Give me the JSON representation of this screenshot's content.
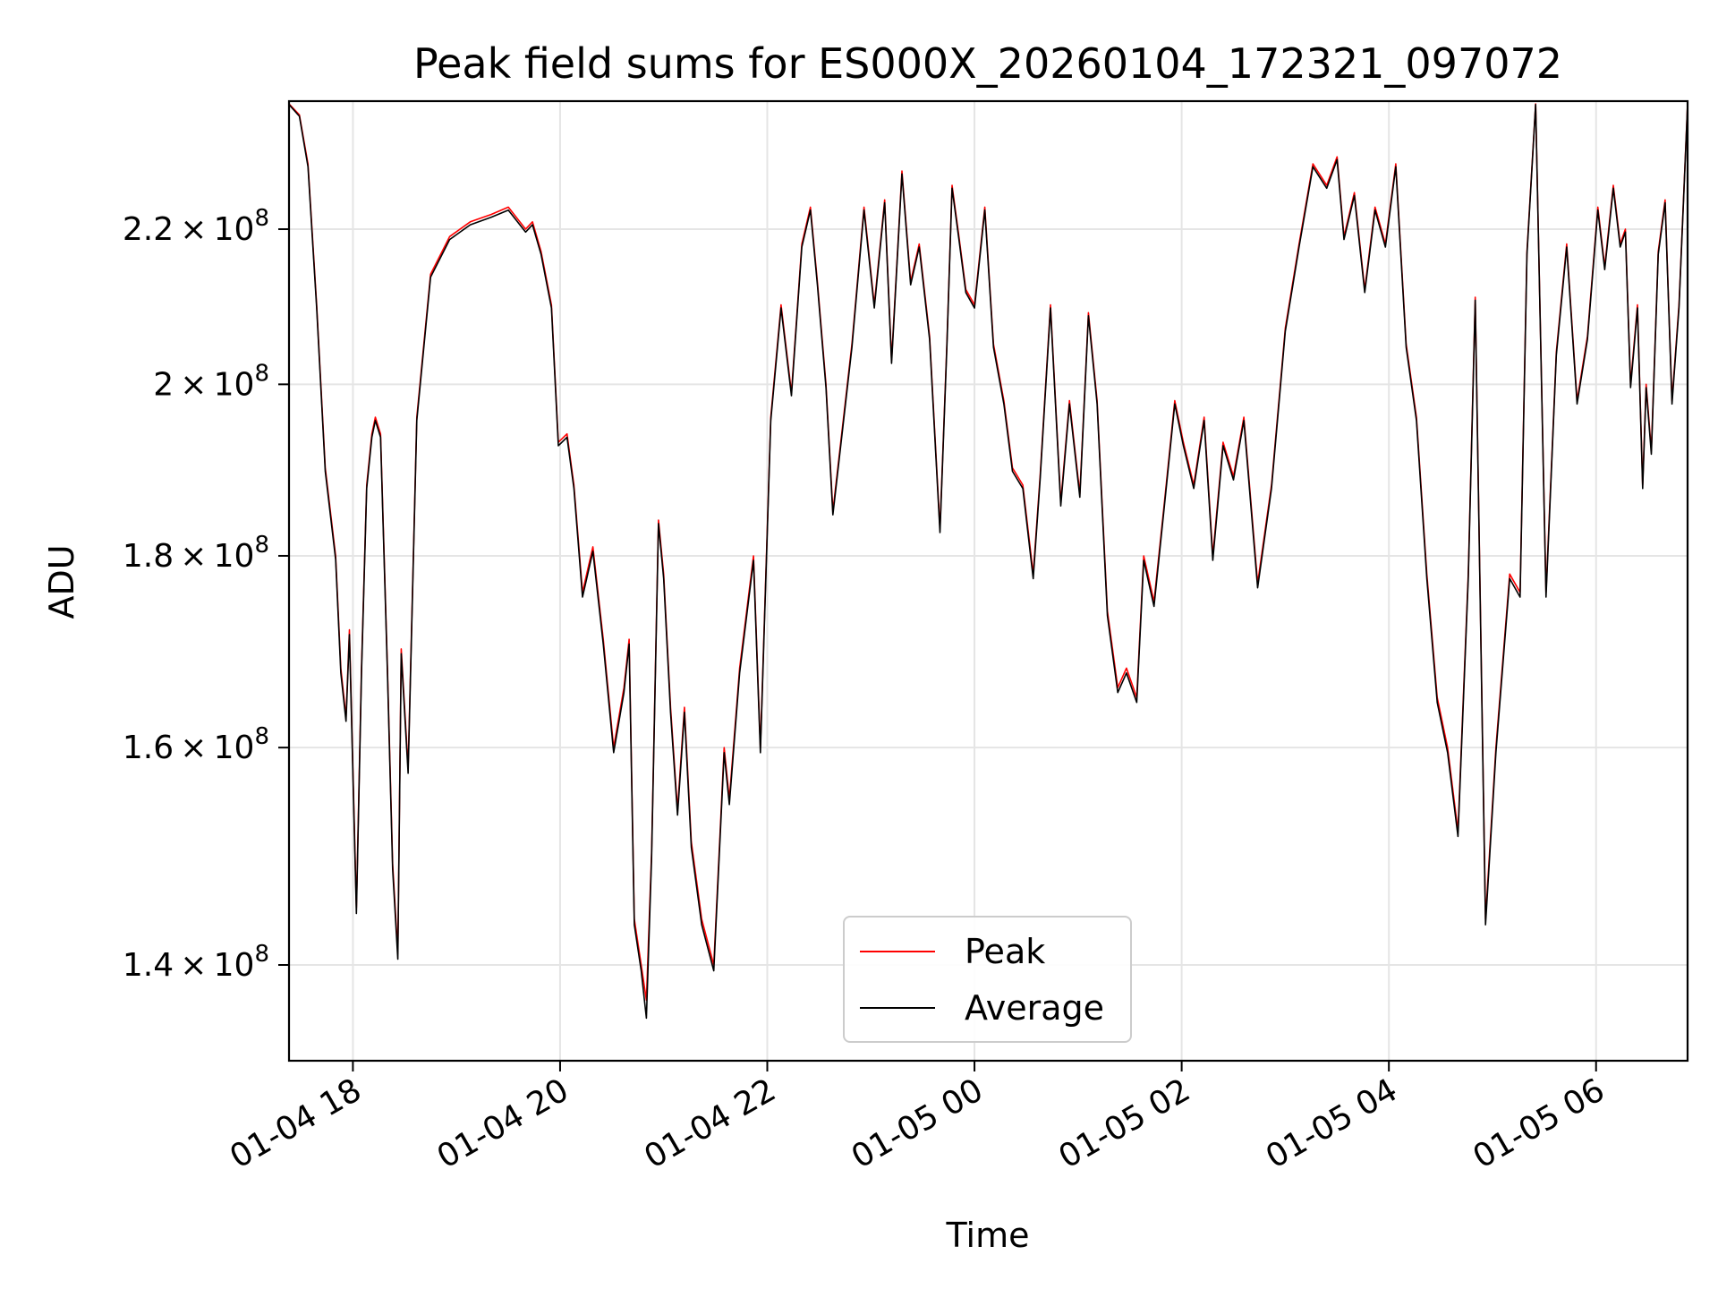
{
  "chart_data": {
    "type": "line",
    "title": "Peak field sums for ES000X_20260104_172321_097072",
    "xlabel": "Time",
    "ylabel": "ADU",
    "x_unit": "hours since 2026-01-04 00:00",
    "xlim": [
      "01-04 17:23",
      "01-05 06:53"
    ],
    "ylim": [
      132000000,
      238000000
    ],
    "yscale": "log",
    "grid": true,
    "legend_position": "lower center",
    "x_ticks": [
      {
        "value": 18,
        "label": "01-04 18"
      },
      {
        "value": 20,
        "label": "01-04 20"
      },
      {
        "value": 22,
        "label": "01-04 22"
      },
      {
        "value": 24,
        "label": "01-05 00"
      },
      {
        "value": 26,
        "label": "01-05 02"
      },
      {
        "value": 28,
        "label": "01-05 04"
      },
      {
        "value": 30,
        "label": "01-05 06"
      }
    ],
    "y_ticks": [
      {
        "value": 140000000,
        "mantissa": "1.4",
        "exponent": "8"
      },
      {
        "value": 160000000,
        "mantissa": "1.6",
        "exponent": "8"
      },
      {
        "value": 180000000,
        "mantissa": "1.8",
        "exponent": "8"
      },
      {
        "value": 200000000,
        "mantissa": "2",
        "exponent": "8"
      },
      {
        "value": 220000000,
        "mantissa": "2.2",
        "exponent": "8"
      }
    ],
    "series": [
      {
        "name": "Peak",
        "color": "#ff0000",
        "x": [
          "01-04 17:23",
          "01-04 17:29",
          "01-04 17:34",
          "01-04 17:39",
          "01-04 17:44",
          "01-04 17:50",
          "01-04 17:53",
          "01-04 17:56",
          "01-04 17:58",
          "01-04 18:02",
          "01-04 18:05",
          "01-04 18:08",
          "01-04 18:11",
          "01-04 18:13",
          "01-04 18:16",
          "01-04 18:20",
          "01-04 18:23",
          "01-04 18:26",
          "01-04 18:28",
          "01-04 18:32",
          "01-04 18:37",
          "01-04 18:45",
          "01-04 18:56",
          "01-04 19:08",
          "01-04 19:20",
          "01-04 19:30",
          "01-04 19:40",
          "01-04 19:44",
          "01-04 19:49",
          "01-04 19:55",
          "01-04 19:59",
          "01-04 20:04",
          "01-04 20:08",
          "01-04 20:13",
          "01-04 20:19",
          "01-04 20:25",
          "01-04 20:31",
          "01-04 20:37",
          "01-04 20:40",
          "01-04 20:43",
          "01-04 20:47",
          "01-04 20:50",
          "01-04 20:53",
          "01-04 20:57",
          "01-04 21:00",
          "01-04 21:04",
          "01-04 21:08",
          "01-04 21:12",
          "01-04 21:16",
          "01-04 21:22",
          "01-04 21:29",
          "01-04 21:35",
          "01-04 21:38",
          "01-04 21:44",
          "01-04 21:52",
          "01-04 21:56",
          "01-04 22:02",
          "01-04 22:08",
          "01-04 22:14",
          "01-04 22:20",
          "01-04 22:25",
          "01-04 22:29",
          "01-04 22:34",
          "01-04 22:38",
          "01-04 22:49",
          "01-04 22:56",
          "01-04 23:02",
          "01-04 23:08",
          "01-04 23:12",
          "01-04 23:18",
          "01-04 23:23",
          "01-04 23:28",
          "01-04 23:34",
          "01-04 23:40",
          "01-04 23:44",
          "01-04 23:47",
          "01-04 23:51",
          "01-04 23:55",
          "01-05 00:00",
          "01-05 00:06",
          "01-05 00:11",
          "01-05 00:17",
          "01-05 00:22",
          "01-05 00:28",
          "01-05 00:34",
          "01-05 00:38",
          "01-05 00:44",
          "01-05 00:50",
          "01-05 00:55",
          "01-05 01:01",
          "01-05 01:06",
          "01-05 01:11",
          "01-05 01:17",
          "01-05 01:23",
          "01-05 01:28",
          "01-05 01:34",
          "01-05 01:38",
          "01-05 01:44",
          "01-05 01:50",
          "01-05 01:56",
          "01-05 02:01",
          "01-05 02:07",
          "01-05 02:13",
          "01-05 02:18",
          "01-05 02:24",
          "01-05 02:30",
          "01-05 02:36",
          "01-05 02:44",
          "01-05 02:52",
          "01-05 03:00",
          "01-05 03:08",
          "01-05 03:16",
          "01-05 03:24",
          "01-05 03:30",
          "01-05 03:34",
          "01-05 03:40",
          "01-05 03:46",
          "01-05 03:52",
          "01-05 03:58",
          "01-05 04:04",
          "01-05 04:10",
          "01-05 04:16",
          "01-05 04:22",
          "01-05 04:28",
          "01-05 04:34",
          "01-05 04:40",
          "01-05 04:46",
          "01-05 04:50",
          "01-05 04:56",
          "01-05 05:02",
          "01-05 05:10",
          "01-05 05:16",
          "01-05 05:20",
          "01-05 05:25",
          "01-05 05:31",
          "01-05 05:37",
          "01-05 05:43",
          "01-05 05:49",
          "01-05 05:55",
          "01-05 06:01",
          "01-05 06:05",
          "01-05 06:10",
          "01-05 06:14",
          "01-05 06:17",
          "01-05 06:20",
          "01-05 06:24",
          "01-05 06:27",
          "01-05 06:29",
          "01-05 06:32",
          "01-05 06:36",
          "01-05 06:40",
          "01-05 06:44",
          "01-05 06:48",
          "01-05 06:53"
        ],
        "values": [
          237600000,
          236000000,
          229000000,
          210000000,
          190000000,
          180000000,
          168000000,
          163000000,
          172000000,
          145000000,
          168000000,
          188000000,
          194000000,
          196000000,
          194000000,
          168000000,
          149000000,
          141000000,
          170000000,
          158000000,
          196000000,
          214000000,
          219000000,
          221000000,
          222000000,
          223000000,
          220000000,
          221000000,
          217000000,
          210000000,
          193000000,
          194000000,
          188000000,
          176000000,
          181000000,
          171000000,
          160000000,
          166000000,
          171000000,
          144000000,
          140000000,
          137000000,
          150000000,
          184000000,
          178000000,
          164000000,
          154000000,
          164000000,
          151000000,
          144000000,
          140000000,
          160000000,
          155000000,
          168000000,
          180000000,
          160000000,
          196000000,
          210000000,
          199000000,
          218000000,
          223000000,
          213000000,
          200000000,
          185000000,
          205000000,
          223000000,
          210000000,
          224000000,
          203000000,
          228000000,
          213000000,
          218000000,
          206000000,
          183000000,
          205000000,
          226000000,
          219000000,
          212000000,
          210000000,
          223000000,
          205000000,
          198000000,
          190000000,
          188000000,
          178000000,
          189000000,
          210000000,
          186000000,
          198000000,
          187000000,
          209000000,
          198000000,
          174000000,
          166000000,
          168000000,
          165000000,
          180000000,
          175000000,
          186000000,
          198000000,
          193000000,
          188000000,
          196000000,
          180000000,
          193000000,
          189000000,
          196000000,
          177000000,
          188000000,
          207000000,
          218000000,
          229000000,
          226000000,
          230000000,
          219000000,
          225000000,
          212000000,
          223000000,
          218000000,
          229000000,
          205000000,
          196000000,
          178000000,
          165000000,
          160000000,
          152000000,
          178000000,
          211000000,
          144000000,
          160000000,
          178000000,
          176000000,
          217000000,
          237600000,
          176000000,
          204000000,
          218000000,
          198000000,
          206000000,
          223000000,
          215000000,
          226000000,
          218000000,
          220000000,
          200000000,
          210000000,
          188000000,
          200000000,
          192000000,
          217000000,
          224000000,
          198000000,
          210000000,
          237600000
        ],
        "visible": true
      },
      {
        "name": "Average",
        "color": "#000000",
        "x": [
          "01-04 17:23",
          "01-04 17:29",
          "01-04 17:34",
          "01-04 17:39",
          "01-04 17:44",
          "01-04 17:50",
          "01-04 17:53",
          "01-04 17:56",
          "01-04 17:58",
          "01-04 18:02",
          "01-04 18:05",
          "01-04 18:08",
          "01-04 18:11",
          "01-04 18:13",
          "01-04 18:16",
          "01-04 18:20",
          "01-04 18:23",
          "01-04 18:26",
          "01-04 18:28",
          "01-04 18:32",
          "01-04 18:37",
          "01-04 18:45",
          "01-04 18:56",
          "01-04 19:08",
          "01-04 19:20",
          "01-04 19:30",
          "01-04 19:40",
          "01-04 19:44",
          "01-04 19:49",
          "01-04 19:55",
          "01-04 19:59",
          "01-04 20:04",
          "01-04 20:08",
          "01-04 20:13",
          "01-04 20:19",
          "01-04 20:25",
          "01-04 20:31",
          "01-04 20:37",
          "01-04 20:40",
          "01-04 20:43",
          "01-04 20:47",
          "01-04 20:50",
          "01-04 20:53",
          "01-04 20:57",
          "01-04 21:00",
          "01-04 21:04",
          "01-04 21:08",
          "01-04 21:12",
          "01-04 21:16",
          "01-04 21:22",
          "01-04 21:29",
          "01-04 21:35",
          "01-04 21:38",
          "01-04 21:44",
          "01-04 21:52",
          "01-04 21:56",
          "01-04 22:02",
          "01-04 22:08",
          "01-04 22:14",
          "01-04 22:20",
          "01-04 22:25",
          "01-04 22:29",
          "01-04 22:34",
          "01-04 22:38",
          "01-04 22:49",
          "01-04 22:56",
          "01-04 23:02",
          "01-04 23:08",
          "01-04 23:12",
          "01-04 23:18",
          "01-04 23:23",
          "01-04 23:28",
          "01-04 23:34",
          "01-04 23:40",
          "01-04 23:44",
          "01-04 23:47",
          "01-04 23:51",
          "01-04 23:55",
          "01-05 00:00",
          "01-05 00:06",
          "01-05 00:11",
          "01-05 00:17",
          "01-05 00:22",
          "01-05 00:28",
          "01-05 00:34",
          "01-05 00:38",
          "01-05 00:44",
          "01-05 00:50",
          "01-05 00:55",
          "01-05 01:01",
          "01-05 01:06",
          "01-05 01:11",
          "01-05 01:17",
          "01-05 01:23",
          "01-05 01:28",
          "01-05 01:34",
          "01-05 01:38",
          "01-05 01:44",
          "01-05 01:50",
          "01-05 01:56",
          "01-05 02:01",
          "01-05 02:07",
          "01-05 02:13",
          "01-05 02:18",
          "01-05 02:24",
          "01-05 02:30",
          "01-05 02:36",
          "01-05 02:44",
          "01-05 02:52",
          "01-05 03:00",
          "01-05 03:08",
          "01-05 03:16",
          "01-05 03:24",
          "01-05 03:30",
          "01-05 03:34",
          "01-05 03:40",
          "01-05 03:46",
          "01-05 03:52",
          "01-05 03:58",
          "01-05 04:04",
          "01-05 04:10",
          "01-05 04:16",
          "01-05 04:22",
          "01-05 04:28",
          "01-05 04:34",
          "01-05 04:40",
          "01-05 04:46",
          "01-05 04:50",
          "01-05 04:56",
          "01-05 05:02",
          "01-05 05:10",
          "01-05 05:16",
          "01-05 05:20",
          "01-05 05:25",
          "01-05 05:31",
          "01-05 05:37",
          "01-05 05:43",
          "01-05 05:49",
          "01-05 05:55",
          "01-05 06:01",
          "01-05 06:05",
          "01-05 06:10",
          "01-05 06:14",
          "01-05 06:17",
          "01-05 06:20",
          "01-05 06:24",
          "01-05 06:27",
          "01-05 06:29",
          "01-05 06:32",
          "01-05 06:36",
          "01-05 06:40",
          "01-05 06:44",
          "01-05 06:48",
          "01-05 06:53"
        ],
        "values": [
          237500000,
          235800000,
          228600000,
          209600000,
          189600000,
          179600000,
          167500000,
          162600000,
          171500000,
          144500000,
          167500000,
          187600000,
          193600000,
          195600000,
          193600000,
          167500000,
          148500000,
          140500000,
          169500000,
          157500000,
          195600000,
          213600000,
          218600000,
          220600000,
          221600000,
          222600000,
          219600000,
          220600000,
          216600000,
          209600000,
          192600000,
          193600000,
          187600000,
          175500000,
          180500000,
          170500000,
          159500000,
          165500000,
          170500000,
          143500000,
          139500000,
          135500000,
          149500000,
          183600000,
          177500000,
          163500000,
          153500000,
          163500000,
          150500000,
          143500000,
          139500000,
          159500000,
          154500000,
          167500000,
          179500000,
          159500000,
          195600000,
          209600000,
          198600000,
          217600000,
          222600000,
          212600000,
          199600000,
          184600000,
          204600000,
          222600000,
          209600000,
          223600000,
          202600000,
          227600000,
          212600000,
          217600000,
          205600000,
          182600000,
          204600000,
          225600000,
          218600000,
          211600000,
          209600000,
          222600000,
          204600000,
          197600000,
          189600000,
          187600000,
          177500000,
          188600000,
          209600000,
          185600000,
          197600000,
          186600000,
          208600000,
          197600000,
          173500000,
          165500000,
          167500000,
          164500000,
          179500000,
          174500000,
          185600000,
          197600000,
          192600000,
          187600000,
          195600000,
          179500000,
          192600000,
          188600000,
          195600000,
          176500000,
          187600000,
          206600000,
          217600000,
          228600000,
          225600000,
          229600000,
          218600000,
          224600000,
          211600000,
          222600000,
          217600000,
          228600000,
          204600000,
          195600000,
          177500000,
          164500000,
          159500000,
          151500000,
          177500000,
          210600000,
          143500000,
          159500000,
          177500000,
          175500000,
          216600000,
          237500000,
          175500000,
          203600000,
          217600000,
          197600000,
          205600000,
          222600000,
          214600000,
          225600000,
          217600000,
          219600000,
          199600000,
          209600000,
          187600000,
          199600000,
          191600000,
          216600000,
          223600000,
          197600000,
          209600000,
          237500000
        ],
        "visible": true
      }
    ]
  }
}
